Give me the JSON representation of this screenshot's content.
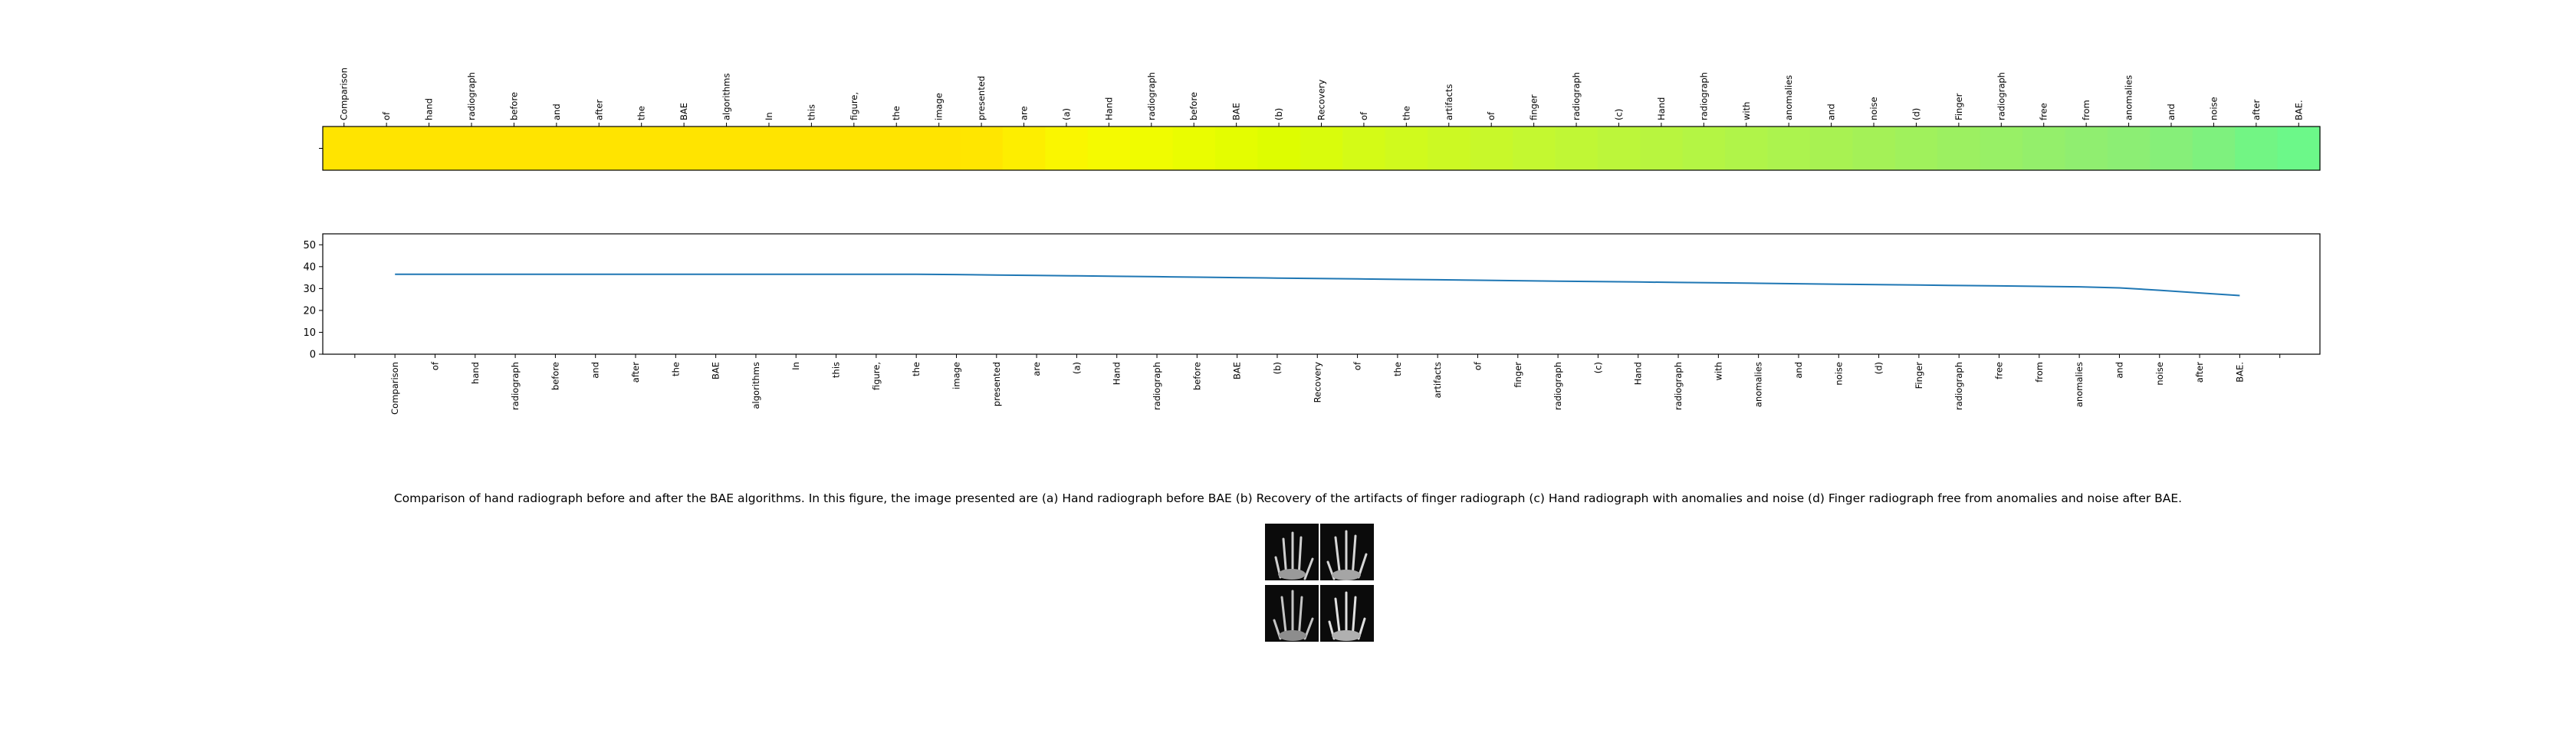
{
  "chart_data": [
    {
      "type": "heatmap",
      "tokens": [
        "Comparison",
        "of",
        "hand",
        "radiograph",
        "before",
        "and",
        "after",
        "the",
        "BAE",
        "algorithms",
        "In",
        "this",
        "figure,",
        "the",
        "image",
        "presented",
        "are",
        "(a)",
        "Hand",
        "radiograph",
        "before",
        "BAE",
        "(b)",
        "Recovery",
        "of",
        "the",
        "artifacts",
        "of",
        "finger",
        "radiograph",
        "(c)",
        "Hand",
        "radiograph",
        "with",
        "anomalies",
        "and",
        "noise",
        "(d)",
        "Finger",
        "radiograph",
        "free",
        "from",
        "anomalies",
        "and",
        "noise",
        "after",
        "BAE."
      ],
      "colors": [
        "#ffe400",
        "#ffe400",
        "#ffe400",
        "#ffe400",
        "#ffe400",
        "#ffe400",
        "#ffe400",
        "#ffe400",
        "#ffe400",
        "#ffe400",
        "#ffe400",
        "#ffe400",
        "#ffe400",
        "#ffe400",
        "#ffe400",
        "#ffe600",
        "#fdee00",
        "#faf600",
        "#f5fa00",
        "#f0fc00",
        "#eafd00",
        "#e4fd00",
        "#defd00",
        "#d9fc0c",
        "#d4fb16",
        "#d0fa1d",
        "#ccf923",
        "#c8f82a",
        "#c4f830",
        "#c0f735",
        "#bcf63a",
        "#b8f53f",
        "#b4f544",
        "#b0f449",
        "#acf34e",
        "#a8f252",
        "#a4f157",
        "#a0f15c",
        "#9cf061",
        "#98f066",
        "#94ef6b",
        "#90ee70",
        "#8cee74",
        "#86ef79",
        "#7ef17e",
        "#72f584",
        "#6cf889"
      ],
      "xlim": [
        -0.5,
        46.5
      ]
    },
    {
      "type": "line",
      "x": [
        "Comparison",
        "of",
        "hand",
        "radiograph",
        "before",
        "and",
        "after",
        "the",
        "BAE",
        "algorithms",
        "In",
        "this",
        "figure,",
        "the",
        "image",
        "presented",
        "are",
        "(a)",
        "Hand",
        "radiograph",
        "before",
        "BAE",
        "(b)",
        "Recovery",
        "of",
        "the",
        "artifacts",
        "of",
        "finger",
        "radiograph",
        "(c)",
        "Hand",
        "radiograph",
        "with",
        "anomalies",
        "and",
        "noise",
        "(d)",
        "Finger",
        "radiograph",
        "free",
        "from",
        "anomalies",
        "and",
        "noise",
        "after",
        "BAE."
      ],
      "series": [
        {
          "values": [
            36.5,
            36.5,
            36.5,
            36.5,
            36.5,
            36.5,
            36.5,
            36.5,
            36.5,
            36.5,
            36.5,
            36.5,
            36.5,
            36.5,
            36.4,
            36.2,
            36.0,
            35.8,
            35.6,
            35.4,
            35.2,
            35.0,
            34.8,
            34.6,
            34.4,
            34.2,
            34.0,
            33.8,
            33.6,
            33.4,
            33.2,
            33.0,
            32.8,
            32.6,
            32.4,
            32.2,
            32.0,
            31.8,
            31.6,
            31.4,
            31.2,
            31.0,
            30.8,
            30.3,
            29.2,
            28.0,
            26.8
          ],
          "color": "#1f77b4"
        }
      ],
      "yticks": [
        0,
        10,
        20,
        30,
        40,
        50
      ],
      "ylim": [
        0,
        55
      ],
      "xlim": [
        -1.8,
        48.0
      ]
    }
  ],
  "caption": "Comparison of hand radiograph before and after the BAE algorithms. In this figure, the image presented are (a) Hand radiograph before BAE (b) Recovery of the artifacts of finger radiograph (c) Hand radiograph with anomalies and noise (d) Finger radiograph free from anomalies and noise after BAE."
}
